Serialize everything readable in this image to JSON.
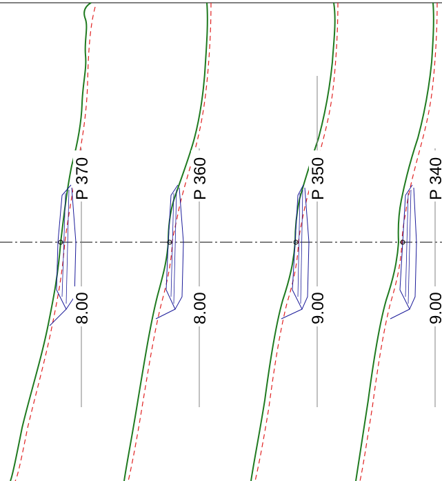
{
  "colors": {
    "background": "#ffffff",
    "terrain": "#1f7a1f",
    "design_line": "#e02020",
    "structure": "#1a1a99",
    "axis": "#000000",
    "station_line": "#808080"
  },
  "sections": [
    {
      "station_label": "P 370",
      "offset_label": "8.00"
    },
    {
      "station_label": "P 360",
      "offset_label": "8.00"
    },
    {
      "station_label": "P 350",
      "offset_label": "9.00"
    },
    {
      "station_label": "P 340",
      "offset_label": "9.00"
    }
  ]
}
